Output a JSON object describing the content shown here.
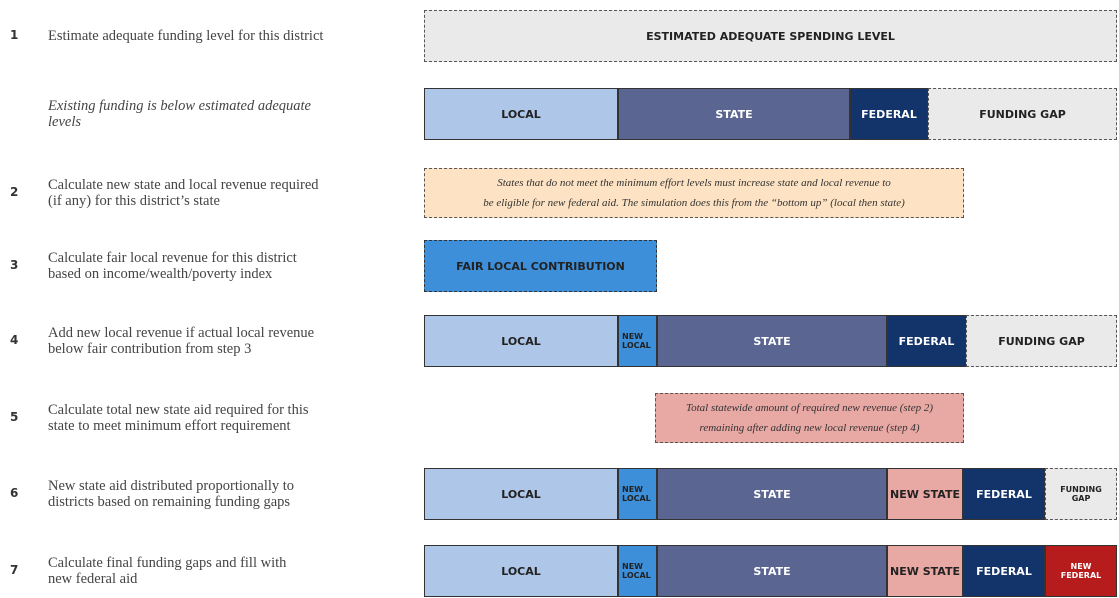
{
  "rows": [
    {
      "number": "1",
      "description": [
        "Estimate adequate funding level for this district"
      ],
      "segments": [
        [
          "ESTIMATED ADEQUATE SPENDING LEVEL"
        ]
      ]
    },
    {
      "description": [
        "Existing funding is below estimated adequate",
        "levels"
      ],
      "segments": [
        [
          "LOCAL"
        ],
        [
          "STATE"
        ],
        [
          "FEDERAL"
        ],
        [
          "FUNDING GAP"
        ]
      ]
    },
    {
      "number": "2",
      "description": [
        "Calculate new state and local revenue required",
        "(if any) for this district’s state"
      ],
      "note": [
        "States that do not meet the minimum effort levels must increase state and local revenue to",
        "be eligible for new federal aid. The simulation does this from the “bottom up” (local then state)"
      ]
    },
    {
      "number": "3",
      "description": [
        "Calculate fair local revenue for this district",
        "based on income/wealth/poverty index"
      ],
      "segments": [
        [
          "FAIR LOCAL CONTRIBUTION"
        ]
      ]
    },
    {
      "number": "4",
      "description": [
        "Add new local revenue if actual local revenue",
        "below fair contribution from step 3"
      ],
      "segments": [
        [
          "LOCAL"
        ],
        [
          "NEW",
          "LOCAL"
        ],
        [
          "STATE"
        ],
        [
          "FEDERAL"
        ],
        [
          "FUNDING GAP"
        ]
      ]
    },
    {
      "number": "5",
      "description": [
        "Calculate total new state aid required for this",
        "state to meet minimum effort requirement"
      ],
      "note": [
        "Total statewide amount of required new revenue (step 2)",
        "remaining after adding new local revenue (step 4)"
      ]
    },
    {
      "number": "6",
      "description": [
        "New state aid distributed proportionally to",
        "districts based on remaining funding gaps"
      ],
      "segments": [
        [
          "LOCAL"
        ],
        [
          "NEW",
          "LOCAL"
        ],
        [
          "STATE"
        ],
        [
          "NEW STATE"
        ],
        [
          "FEDERAL"
        ],
        [
          "FUNDING",
          "GAP"
        ]
      ]
    },
    {
      "number": "7",
      "description": [
        "Calculate final funding gaps and fill with",
        "new federal aid"
      ],
      "segments": [
        [
          "LOCAL"
        ],
        [
          "NEW",
          "LOCAL"
        ],
        [
          "STATE"
        ],
        [
          "NEW STATE"
        ],
        [
          "FEDERAL"
        ],
        [
          "NEW",
          "FEDERAL"
        ]
      ]
    }
  ]
}
